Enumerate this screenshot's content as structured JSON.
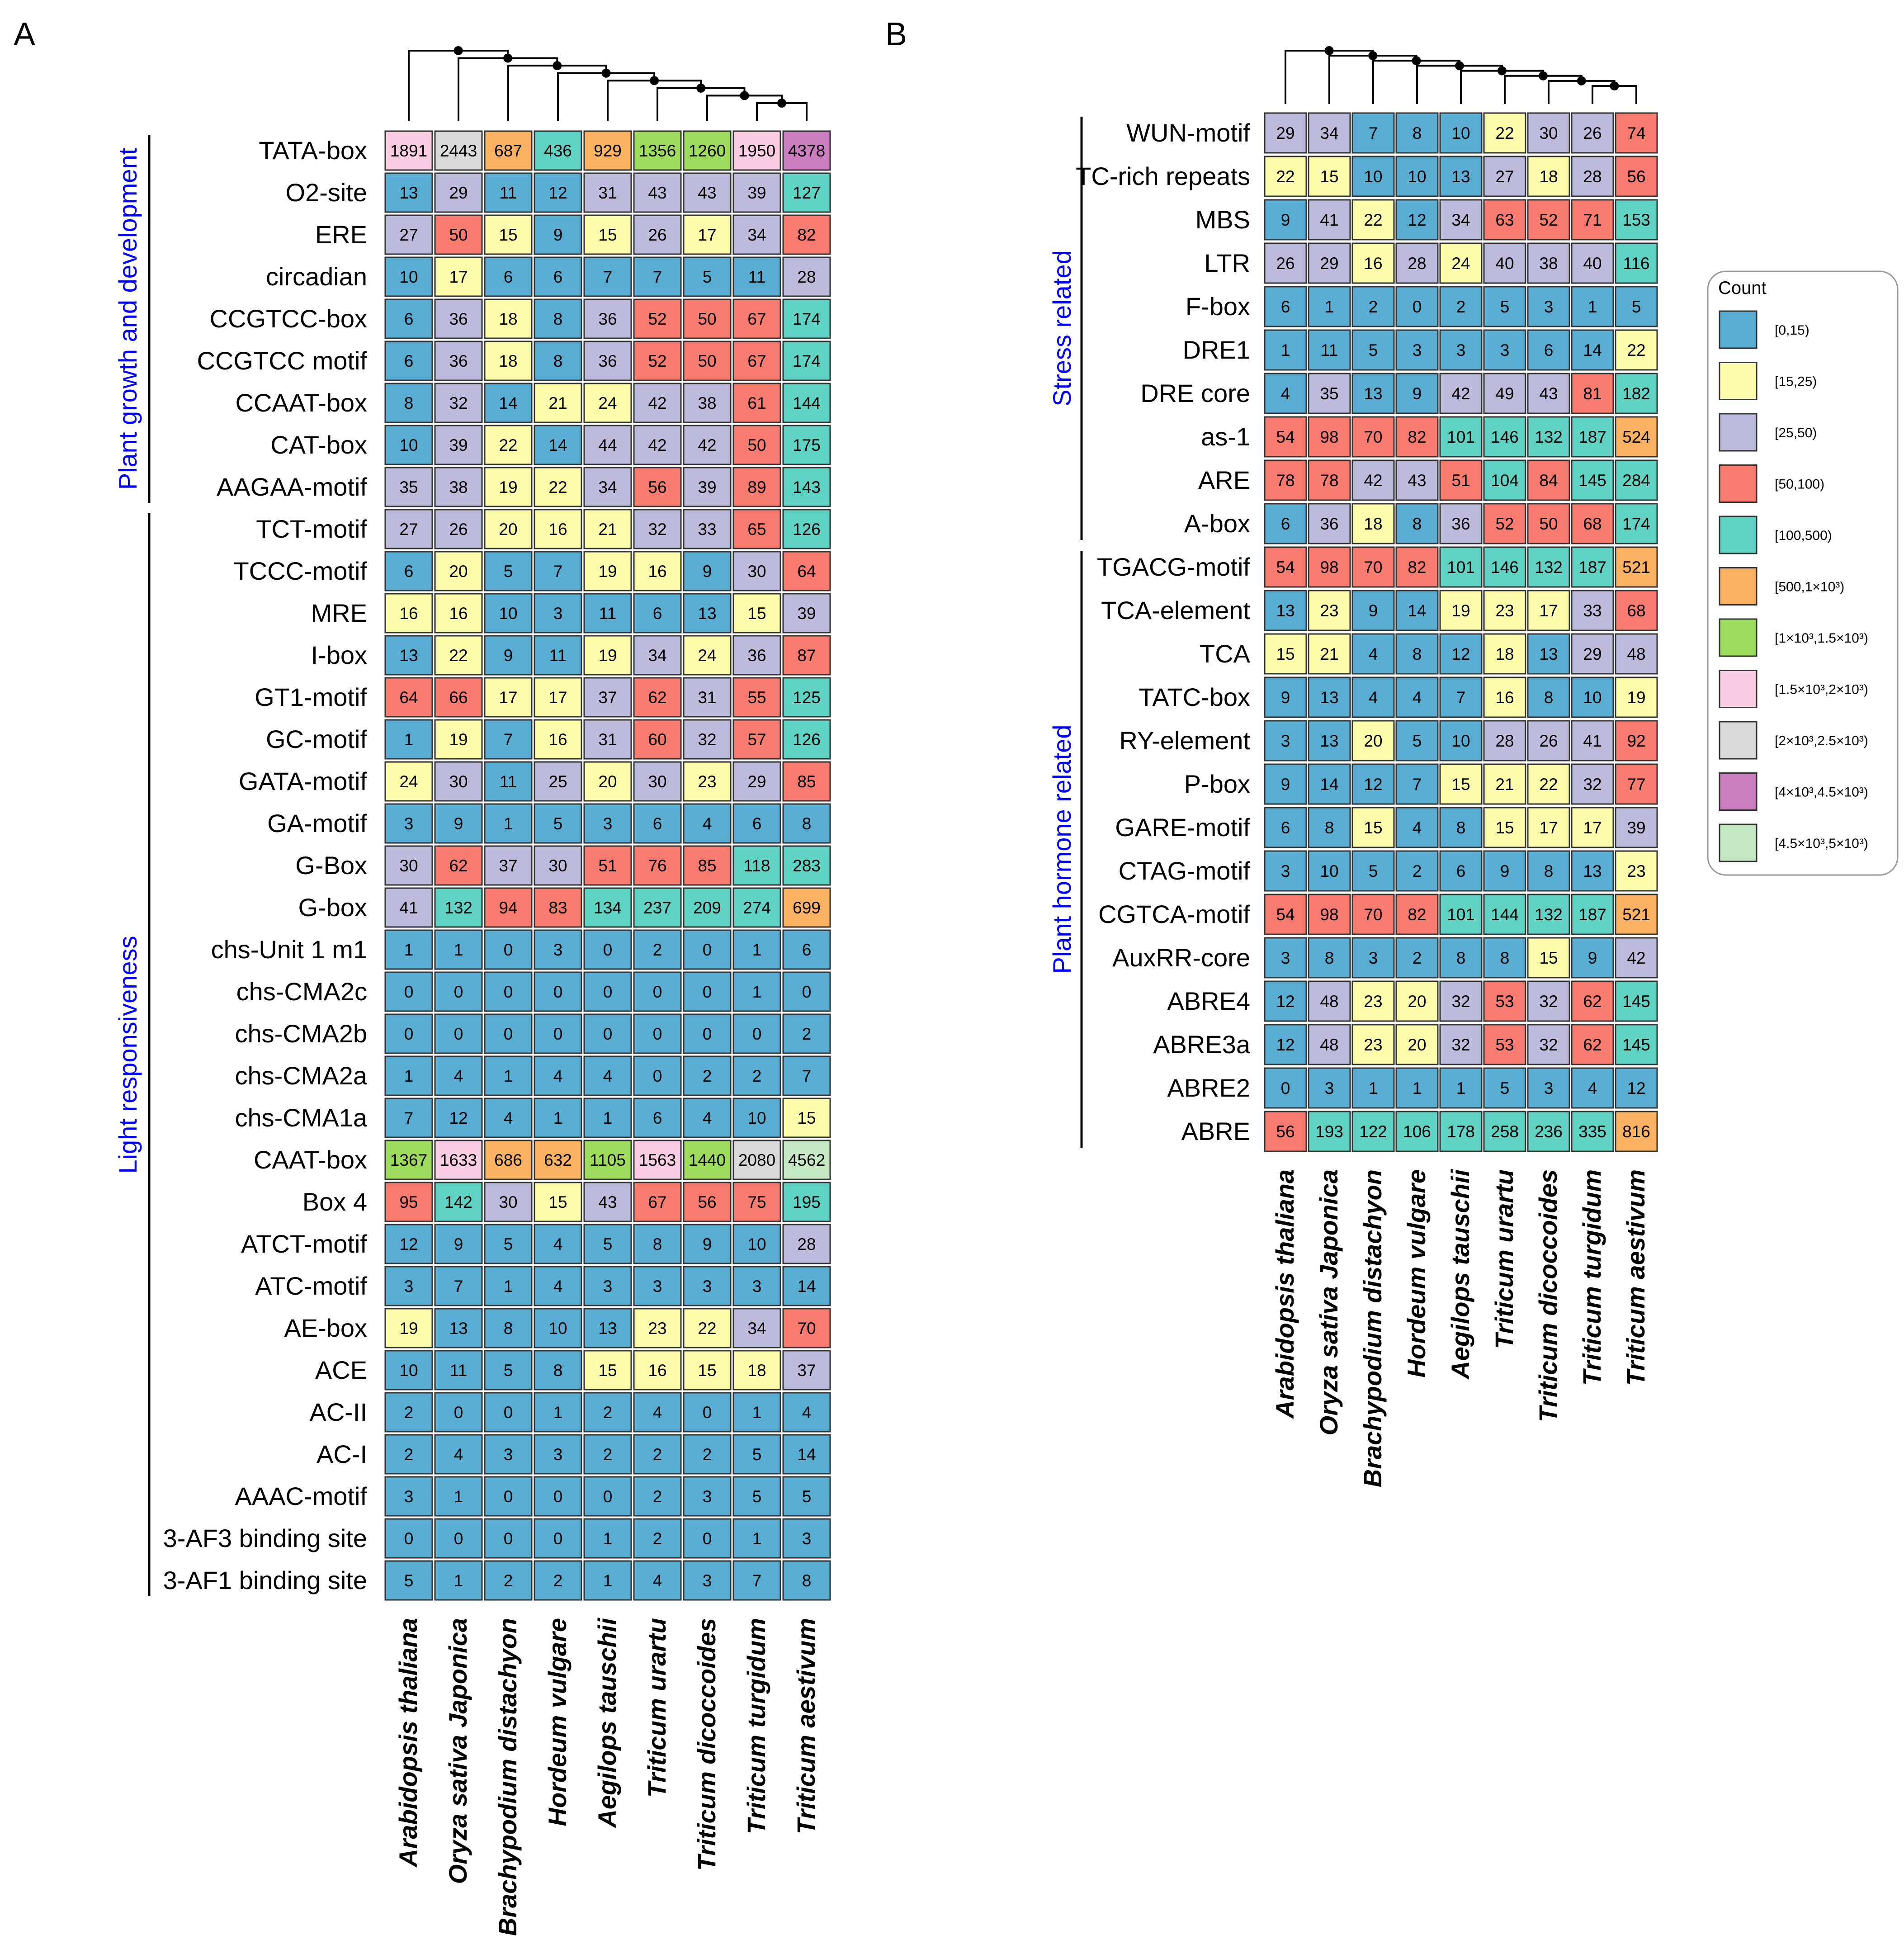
{
  "legend": {
    "title": "Count",
    "bins": [
      {
        "label": "[0,15)",
        "color": "#5aadd2"
      },
      {
        "label": "[15,25)",
        "color": "#fdfcaa"
      },
      {
        "label": "[25,50)",
        "color": "#bdbbdc"
      },
      {
        "label": "[50,100)",
        "color": "#f77b6e"
      },
      {
        "label": "[100,500)",
        "color": "#60d3c5"
      },
      {
        "label": "[500,1×10³)",
        "color": "#fbb262"
      },
      {
        "label": "[1×10³,1.5×10³)",
        "color": "#9ddc5c"
      },
      {
        "label": "[1.5×10³,2×10³)",
        "color": "#fbcde5"
      },
      {
        "label": "[2×10³,2.5×10³)",
        "color": "#d9d9d9"
      },
      {
        "label": "[4×10³,4.5×10³)",
        "color": "#cc7ec0"
      },
      {
        "label": "[4.5×10³,5×10³)",
        "color": "#c5e9c4"
      }
    ]
  },
  "chart_data": [
    {
      "type": "heatmap",
      "panel": "A",
      "columns": [
        "Arabidopsis thaliana",
        "Oryza sativa Japonica",
        "Brachypodium distachyon",
        "Hordeum vulgare",
        "Aegilops tauschii",
        "Triticum urartu",
        "Triticum dicoccoides",
        "Triticum turgidum",
        "Triticum aestivum"
      ],
      "groups": [
        {
          "label": "Plant growth and development",
          "rows": [
            0,
            8
          ]
        },
        {
          "label": "Light responsiveness",
          "rows": [
            9,
            34
          ]
        }
      ],
      "rows": [
        {
          "label": "TATA-box",
          "values": [
            1891,
            2443,
            687,
            436,
            929,
            1356,
            1260,
            1950,
            4378
          ]
        },
        {
          "label": "O2-site",
          "values": [
            13,
            29,
            11,
            12,
            31,
            43,
            43,
            39,
            127
          ]
        },
        {
          "label": "ERE",
          "values": [
            27,
            50,
            15,
            9,
            15,
            26,
            17,
            34,
            82
          ]
        },
        {
          "label": "circadian",
          "values": [
            10,
            17,
            6,
            6,
            7,
            7,
            5,
            11,
            28
          ]
        },
        {
          "label": "CCGTCC-box",
          "values": [
            6,
            36,
            18,
            8,
            36,
            52,
            50,
            67,
            174
          ]
        },
        {
          "label": "CCGTCC motif",
          "values": [
            6,
            36,
            18,
            8,
            36,
            52,
            50,
            67,
            174
          ]
        },
        {
          "label": "CCAAT-box",
          "values": [
            8,
            32,
            14,
            21,
            24,
            42,
            38,
            61,
            144
          ]
        },
        {
          "label": "CAT-box",
          "values": [
            10,
            39,
            22,
            14,
            44,
            42,
            42,
            50,
            175
          ]
        },
        {
          "label": "AAGAA-motif",
          "values": [
            35,
            38,
            19,
            22,
            34,
            56,
            39,
            89,
            143
          ]
        },
        {
          "label": "TCT-motif",
          "values": [
            27,
            26,
            20,
            16,
            21,
            32,
            33,
            65,
            126
          ]
        },
        {
          "label": "TCCC-motif",
          "values": [
            6,
            20,
            5,
            7,
            19,
            16,
            9,
            30,
            64
          ]
        },
        {
          "label": "MRE",
          "values": [
            16,
            16,
            10,
            3,
            11,
            6,
            13,
            15,
            39
          ]
        },
        {
          "label": "I-box",
          "values": [
            13,
            22,
            9,
            11,
            19,
            34,
            24,
            36,
            87
          ]
        },
        {
          "label": "GT1-motif",
          "values": [
            64,
            66,
            17,
            17,
            37,
            62,
            31,
            55,
            125
          ]
        },
        {
          "label": "GC-motif",
          "values": [
            1,
            19,
            7,
            16,
            31,
            60,
            32,
            57,
            126
          ]
        },
        {
          "label": "GATA-motif",
          "values": [
            24,
            30,
            11,
            25,
            20,
            30,
            23,
            29,
            85
          ]
        },
        {
          "label": "GA-motif",
          "values": [
            3,
            9,
            1,
            5,
            3,
            6,
            4,
            6,
            8
          ]
        },
        {
          "label": "G-Box",
          "values": [
            30,
            62,
            37,
            30,
            51,
            76,
            85,
            118,
            283
          ]
        },
        {
          "label": "G-box",
          "values": [
            41,
            132,
            94,
            83,
            134,
            237,
            209,
            274,
            699
          ]
        },
        {
          "label": "chs-Unit 1 m1",
          "values": [
            1,
            1,
            0,
            3,
            0,
            2,
            0,
            1,
            6
          ]
        },
        {
          "label": "chs-CMA2c",
          "values": [
            0,
            0,
            0,
            0,
            0,
            0,
            0,
            1,
            0
          ]
        },
        {
          "label": "chs-CMA2b",
          "values": [
            0,
            0,
            0,
            0,
            0,
            0,
            0,
            0,
            2
          ]
        },
        {
          "label": "chs-CMA2a",
          "values": [
            1,
            4,
            1,
            4,
            4,
            0,
            2,
            2,
            7
          ]
        },
        {
          "label": "chs-CMA1a",
          "values": [
            7,
            12,
            4,
            1,
            1,
            6,
            4,
            10,
            15
          ]
        },
        {
          "label": "CAAT-box",
          "values": [
            1367,
            1633,
            686,
            632,
            1105,
            1563,
            1440,
            2080,
            4562
          ]
        },
        {
          "label": "Box 4",
          "values": [
            95,
            142,
            30,
            15,
            43,
            67,
            56,
            75,
            195
          ]
        },
        {
          "label": "ATCT-motif",
          "values": [
            12,
            9,
            5,
            4,
            5,
            8,
            9,
            10,
            28
          ]
        },
        {
          "label": "ATC-motif",
          "values": [
            3,
            7,
            1,
            4,
            3,
            3,
            3,
            3,
            14
          ]
        },
        {
          "label": "AE-box",
          "values": [
            19,
            13,
            8,
            10,
            13,
            23,
            22,
            34,
            70
          ]
        },
        {
          "label": "ACE",
          "values": [
            10,
            11,
            5,
            8,
            15,
            16,
            15,
            18,
            37
          ]
        },
        {
          "label": "AC-II",
          "values": [
            2,
            0,
            0,
            1,
            2,
            4,
            0,
            1,
            4
          ]
        },
        {
          "label": "AC-I",
          "values": [
            2,
            4,
            3,
            3,
            2,
            2,
            2,
            5,
            14
          ]
        },
        {
          "label": "AAAC-motif",
          "values": [
            3,
            1,
            0,
            0,
            0,
            2,
            3,
            5,
            5
          ]
        },
        {
          "label": "3-AF3 binding site",
          "values": [
            0,
            0,
            0,
            0,
            1,
            2,
            0,
            1,
            3
          ]
        },
        {
          "label": "3-AF1 binding site",
          "values": [
            5,
            1,
            2,
            2,
            1,
            4,
            3,
            7,
            8
          ]
        }
      ]
    },
    {
      "type": "heatmap",
      "panel": "B",
      "columns": [
        "Arabidopsis thaliana",
        "Oryza sativa Japonica",
        "Brachypodium distachyon",
        "Hordeum vulgare",
        "Aegilops tauschii",
        "Triticum urartu",
        "Triticum dicoccoides",
        "Triticum turgidum",
        "Triticum aestivum"
      ],
      "groups": [
        {
          "label": "Stress related",
          "rows": [
            0,
            9
          ]
        },
        {
          "label": "Plant hormone related",
          "rows": [
            10,
            23
          ]
        }
      ],
      "rows": [
        {
          "label": "WUN-motif",
          "values": [
            29,
            34,
            7,
            8,
            10,
            22,
            30,
            26,
            74
          ]
        },
        {
          "label": "TC-rich repeats",
          "values": [
            22,
            15,
            10,
            10,
            13,
            27,
            18,
            28,
            56
          ]
        },
        {
          "label": "MBS",
          "values": [
            9,
            41,
            22,
            12,
            34,
            63,
            52,
            71,
            153
          ]
        },
        {
          "label": "LTR",
          "values": [
            26,
            29,
            16,
            28,
            24,
            40,
            38,
            40,
            116
          ]
        },
        {
          "label": "F-box",
          "values": [
            6,
            1,
            2,
            0,
            2,
            5,
            3,
            1,
            5
          ]
        },
        {
          "label": "DRE1",
          "values": [
            1,
            11,
            5,
            3,
            3,
            3,
            6,
            14,
            22
          ]
        },
        {
          "label": "DRE core",
          "values": [
            4,
            35,
            13,
            9,
            42,
            49,
            43,
            81,
            182
          ]
        },
        {
          "label": "as-1",
          "values": [
            54,
            98,
            70,
            82,
            101,
            146,
            132,
            187,
            524
          ]
        },
        {
          "label": "ARE",
          "values": [
            78,
            78,
            42,
            43,
            51,
            104,
            84,
            145,
            284
          ]
        },
        {
          "label": "A-box",
          "values": [
            6,
            36,
            18,
            8,
            36,
            52,
            50,
            68,
            174
          ]
        },
        {
          "label": "TGACG-motif",
          "values": [
            54,
            98,
            70,
            82,
            101,
            146,
            132,
            187,
            521
          ]
        },
        {
          "label": "TCA-element",
          "values": [
            13,
            23,
            9,
            14,
            19,
            23,
            17,
            33,
            68
          ]
        },
        {
          "label": "TCA",
          "values": [
            15,
            21,
            4,
            8,
            12,
            18,
            13,
            29,
            48
          ]
        },
        {
          "label": "TATC-box",
          "values": [
            9,
            13,
            4,
            4,
            7,
            16,
            8,
            10,
            19
          ]
        },
        {
          "label": "RY-element",
          "values": [
            3,
            13,
            20,
            5,
            10,
            28,
            26,
            41,
            92
          ]
        },
        {
          "label": "P-box",
          "values": [
            9,
            14,
            12,
            7,
            15,
            21,
            22,
            32,
            77
          ]
        },
        {
          "label": "GARE-motif",
          "values": [
            6,
            8,
            15,
            4,
            8,
            15,
            17,
            17,
            39
          ]
        },
        {
          "label": "CTAG-motif",
          "values": [
            3,
            10,
            5,
            2,
            6,
            9,
            8,
            13,
            23
          ]
        },
        {
          "label": "CGTCA-motif",
          "values": [
            54,
            98,
            70,
            82,
            101,
            144,
            132,
            187,
            521
          ]
        },
        {
          "label": "AuxRR-core",
          "values": [
            3,
            8,
            3,
            2,
            8,
            8,
            15,
            9,
            42
          ]
        },
        {
          "label": "ABRE4",
          "values": [
            12,
            48,
            23,
            20,
            32,
            53,
            32,
            62,
            145
          ]
        },
        {
          "label": "ABRE3a",
          "values": [
            12,
            48,
            23,
            20,
            32,
            53,
            32,
            62,
            145
          ]
        },
        {
          "label": "ABRE2",
          "values": [
            0,
            3,
            1,
            1,
            1,
            5,
            3,
            4,
            12
          ]
        },
        {
          "label": "ABRE",
          "values": [
            56,
            193,
            122,
            106,
            178,
            258,
            236,
            335,
            816
          ]
        }
      ]
    }
  ]
}
